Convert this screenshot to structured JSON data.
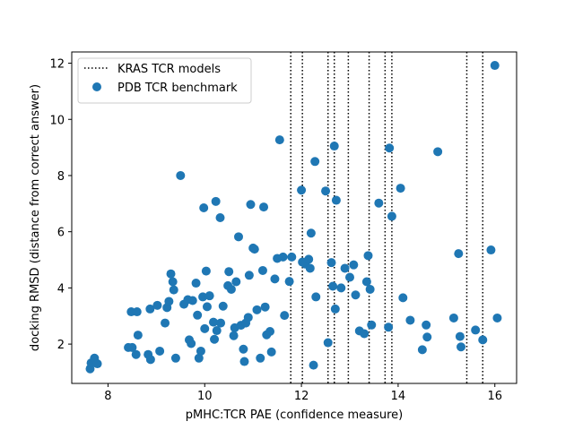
{
  "chart_data": {
    "type": "scatter",
    "xlabel": "pMHC:TCR PAE (confidence measure)",
    "ylabel": "docking RMSD (distance from correct answer)",
    "xlim": [
      7.25,
      16.45
    ],
    "ylim": [
      0.6,
      12.4
    ],
    "xticks": [
      8,
      10,
      12,
      14,
      16
    ],
    "yticks": [
      2,
      4,
      6,
      8,
      10,
      12
    ],
    "grid": false,
    "legend_position": "top-left",
    "legend": [
      {
        "label": "KRAS TCR models",
        "style": "dotted-line",
        "color": "#000000"
      },
      {
        "label": "PDB TCR benchmark",
        "style": "marker",
        "color": "#1f77b4"
      }
    ],
    "vlines": {
      "name": "KRAS TCR models",
      "color": "#000000",
      "x": [
        11.78,
        12.02,
        12.55,
        12.68,
        12.97,
        13.4,
        13.73,
        13.87,
        15.42,
        15.75
      ]
    },
    "series": [
      {
        "name": "PDB TCR benchmark",
        "color": "#1f77b4",
        "points": [
          [
            7.63,
            1.12
          ],
          [
            7.65,
            1.33
          ],
          [
            7.72,
            1.5
          ],
          [
            7.78,
            1.3
          ],
          [
            8.42,
            1.88
          ],
          [
            8.5,
            1.88
          ],
          [
            8.48,
            3.15
          ],
          [
            8.6,
            3.15
          ],
          [
            8.58,
            1.63
          ],
          [
            8.62,
            2.32
          ],
          [
            8.83,
            1.63
          ],
          [
            8.88,
            1.45
          ],
          [
            8.87,
            3.25
          ],
          [
            9.02,
            3.38
          ],
          [
            9.07,
            1.75
          ],
          [
            9.18,
            2.75
          ],
          [
            9.22,
            3.3
          ],
          [
            9.26,
            3.52
          ],
          [
            9.3,
            4.5
          ],
          [
            9.34,
            4.22
          ],
          [
            9.36,
            3.93
          ],
          [
            9.4,
            1.5
          ],
          [
            9.5,
            8.0
          ],
          [
            9.57,
            3.42
          ],
          [
            9.65,
            3.58
          ],
          [
            9.68,
            2.15
          ],
          [
            9.72,
            2.02
          ],
          [
            9.75,
            3.55
          ],
          [
            9.82,
            4.17
          ],
          [
            9.85,
            3.03
          ],
          [
            9.88,
            1.5
          ],
          [
            9.92,
            1.75
          ],
          [
            9.96,
            3.68
          ],
          [
            9.98,
            6.85
          ],
          [
            10.0,
            2.55
          ],
          [
            10.03,
            4.6
          ],
          [
            10.05,
            3.33
          ],
          [
            10.1,
            3.72
          ],
          [
            10.18,
            2.78
          ],
          [
            10.2,
            2.17
          ],
          [
            10.23,
            7.08
          ],
          [
            10.25,
            2.48
          ],
          [
            10.32,
            6.5
          ],
          [
            10.33,
            2.75
          ],
          [
            10.38,
            3.35
          ],
          [
            10.48,
            4.08
          ],
          [
            10.5,
            4.58
          ],
          [
            10.55,
            3.95
          ],
          [
            10.6,
            2.3
          ],
          [
            10.62,
            2.58
          ],
          [
            10.65,
            4.22
          ],
          [
            10.7,
            5.82
          ],
          [
            10.75,
            2.67
          ],
          [
            10.8,
            1.82
          ],
          [
            10.82,
            1.38
          ],
          [
            10.85,
            2.75
          ],
          [
            10.9,
            2.95
          ],
          [
            10.92,
            4.45
          ],
          [
            10.95,
            6.97
          ],
          [
            11.0,
            5.42
          ],
          [
            11.03,
            5.38
          ],
          [
            11.08,
            3.22
          ],
          [
            11.15,
            1.5
          ],
          [
            11.2,
            4.62
          ],
          [
            11.22,
            6.88
          ],
          [
            11.25,
            3.32
          ],
          [
            11.28,
            2.33
          ],
          [
            11.35,
            2.45
          ],
          [
            11.38,
            1.72
          ],
          [
            11.45,
            4.32
          ],
          [
            11.5,
            5.05
          ],
          [
            11.55,
            9.27
          ],
          [
            11.62,
            5.1
          ],
          [
            11.65,
            3.02
          ],
          [
            11.75,
            4.23
          ],
          [
            11.8,
            5.1
          ],
          [
            12.0,
            7.48
          ],
          [
            12.02,
            4.92
          ],
          [
            12.08,
            4.85
          ],
          [
            12.15,
            5.02
          ],
          [
            12.18,
            4.7
          ],
          [
            12.2,
            5.95
          ],
          [
            12.25,
            1.25
          ],
          [
            12.28,
            8.5
          ],
          [
            12.3,
            3.68
          ],
          [
            12.5,
            7.45
          ],
          [
            12.55,
            2.05
          ],
          [
            12.62,
            4.9
          ],
          [
            12.65,
            4.06
          ],
          [
            12.68,
            9.05
          ],
          [
            12.7,
            3.25
          ],
          [
            12.72,
            7.12
          ],
          [
            12.82,
            4.0
          ],
          [
            12.9,
            4.7
          ],
          [
            13.0,
            4.38
          ],
          [
            13.08,
            4.82
          ],
          [
            13.12,
            3.75
          ],
          [
            13.2,
            2.47
          ],
          [
            13.3,
            2.37
          ],
          [
            13.35,
            4.22
          ],
          [
            13.38,
            5.15
          ],
          [
            13.42,
            3.95
          ],
          [
            13.45,
            2.68
          ],
          [
            13.6,
            7.02
          ],
          [
            13.8,
            2.6
          ],
          [
            13.82,
            8.98
          ],
          [
            13.87,
            6.55
          ],
          [
            14.05,
            7.55
          ],
          [
            14.1,
            3.65
          ],
          [
            14.25,
            2.85
          ],
          [
            14.5,
            1.8
          ],
          [
            14.58,
            2.68
          ],
          [
            14.6,
            2.25
          ],
          [
            14.82,
            8.85
          ],
          [
            15.15,
            2.93
          ],
          [
            15.25,
            5.22
          ],
          [
            15.28,
            2.27
          ],
          [
            15.3,
            1.9
          ],
          [
            15.6,
            2.5
          ],
          [
            15.75,
            2.15
          ],
          [
            15.92,
            5.35
          ],
          [
            16.0,
            11.92
          ],
          [
            16.05,
            2.93
          ]
        ]
      }
    ]
  }
}
